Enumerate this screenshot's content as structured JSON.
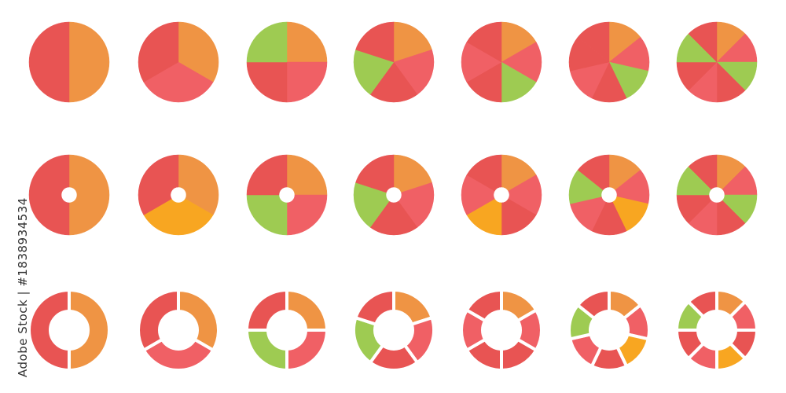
{
  "credit": "Adobe Stock | #1838934534",
  "colors": {
    "R1": "#e85453",
    "R2": "#f06065",
    "O": "#ef9444",
    "G": "#9ecb52",
    "Y": "#f8a621"
  },
  "rows": [
    {
      "style": "pie",
      "charts": [
        [
          "O",
          "R1"
        ],
        [
          "O",
          "R2",
          "R1"
        ],
        [
          "O",
          "R2",
          "R1",
          "G"
        ],
        [
          "O",
          "R2",
          "R1",
          "G",
          "R1"
        ],
        [
          "O",
          "R2",
          "G",
          "R1",
          "R2",
          "R1"
        ],
        [
          "O",
          "R2",
          "G",
          "R1",
          "R2",
          "R1",
          "R1"
        ],
        [
          "O",
          "R2",
          "G",
          "R1",
          "R2",
          "R1",
          "G",
          "R1"
        ]
      ]
    },
    {
      "style": "pie-small-hole",
      "charts": [
        [
          "O",
          "R1"
        ],
        [
          "O",
          "Y",
          "R1"
        ],
        [
          "O",
          "R2",
          "G",
          "R1"
        ],
        [
          "O",
          "R2",
          "R1",
          "G",
          "R1"
        ],
        [
          "O",
          "R2",
          "R1",
          "Y",
          "R2",
          "R1"
        ],
        [
          "O",
          "R2",
          "Y",
          "R1",
          "R2",
          "G",
          "R1"
        ],
        [
          "O",
          "R2",
          "G",
          "R1",
          "R2",
          "R1",
          "G",
          "R1"
        ]
      ]
    },
    {
      "style": "donut-separated",
      "charts": [
        [
          "O",
          "R1"
        ],
        [
          "O",
          "R2",
          "R1"
        ],
        [
          "O",
          "R2",
          "G",
          "R1"
        ],
        [
          "O",
          "R2",
          "R1",
          "G",
          "R1"
        ],
        [
          "O",
          "R2",
          "R1",
          "R1",
          "R2",
          "R1"
        ],
        [
          "O",
          "R2",
          "Y",
          "R1",
          "R2",
          "G",
          "R1"
        ],
        [
          "O",
          "R2",
          "R1",
          "Y",
          "R2",
          "R1",
          "G",
          "R1"
        ]
      ]
    }
  ]
}
